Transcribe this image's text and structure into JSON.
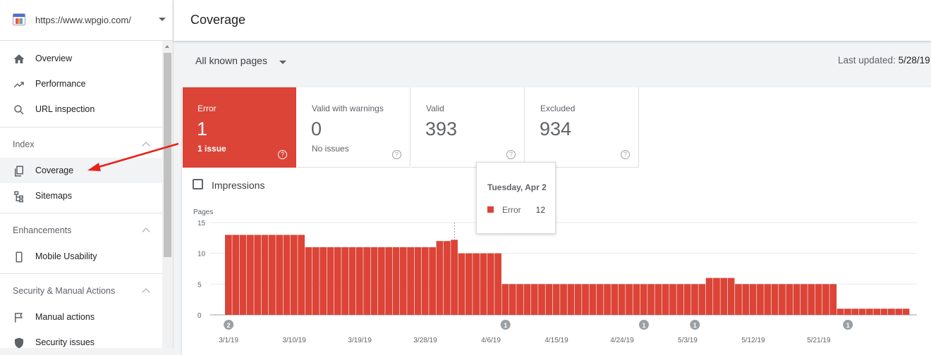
{
  "property": {
    "url": "https://www.wpgio.com/"
  },
  "sidebar": {
    "items_top": [
      {
        "label": "Overview",
        "icon": "home-icon"
      },
      {
        "label": "Performance",
        "icon": "trending-up-icon"
      },
      {
        "label": "URL inspection",
        "icon": "search-icon"
      }
    ],
    "index": {
      "title": "Index",
      "items": [
        {
          "label": "Coverage",
          "icon": "copy-pages-icon"
        },
        {
          "label": "Sitemaps",
          "icon": "sitemap-icon"
        }
      ]
    },
    "enhancements": {
      "title": "Enhancements",
      "items": [
        {
          "label": "Mobile Usability",
          "icon": "phone-icon"
        }
      ]
    },
    "security": {
      "title": "Security & Manual Actions",
      "items": [
        {
          "label": "Manual actions",
          "icon": "flag-icon"
        },
        {
          "label": "Security issues",
          "icon": "shield-icon"
        }
      ]
    }
  },
  "header": {
    "title": "Coverage"
  },
  "toolbar": {
    "pages_filter": "All known pages",
    "last_updated_label": "Last updated:",
    "last_updated_value": "5/28/19"
  },
  "tiles": [
    {
      "label": "Error",
      "value": "1",
      "sub": "1 issue"
    },
    {
      "label": "Valid with warnings",
      "value": "0",
      "sub": "No issues"
    },
    {
      "label": "Valid",
      "value": "393",
      "sub": ""
    },
    {
      "label": "Excluded",
      "value": "934",
      "sub": ""
    }
  ],
  "impressions_label": "Impressions",
  "tooltip": {
    "date": "Tuesday, Apr 2",
    "series": "Error",
    "value": "12"
  },
  "colors": {
    "error": "#db4437",
    "accent_arrow": "#e8211a"
  },
  "chart_data": {
    "type": "bar",
    "ylabel": "Pages",
    "ylim": [
      0,
      15
    ],
    "yticks": [
      0,
      5,
      10,
      15
    ],
    "x_start": "3/1/19",
    "xtick_labels": [
      "3/1/19",
      "3/10/19",
      "3/19/19",
      "3/28/19",
      "4/6/19",
      "4/15/19",
      "4/24/19",
      "5/3/19",
      "5/12/19",
      "5/21/19"
    ],
    "series": [
      {
        "name": "Error",
        "values": [
          13,
          13,
          13,
          13,
          13,
          13,
          13,
          13,
          13,
          13,
          13,
          11,
          11,
          11,
          11,
          11,
          11,
          11,
          11,
          11,
          11,
          11,
          11,
          11,
          11,
          11,
          11,
          11,
          11,
          12,
          12,
          12.2,
          10,
          10,
          10,
          10,
          10,
          10,
          5,
          5,
          5,
          5,
          5,
          5,
          5,
          5,
          5,
          5,
          5,
          5,
          5,
          5,
          5,
          5,
          5,
          5,
          5,
          5,
          5,
          5,
          5,
          5,
          5,
          5,
          5,
          5,
          6,
          6,
          6,
          6,
          5,
          5,
          5,
          5,
          5,
          5,
          5,
          5,
          5,
          5,
          5,
          5,
          5,
          5,
          1,
          1,
          1,
          1,
          1,
          1,
          1,
          1,
          1,
          1
        ]
      }
    ],
    "annotations": [
      {
        "index": 0,
        "label": "2"
      },
      {
        "index": 38,
        "label": "1"
      },
      {
        "index": 57,
        "label": "1"
      },
      {
        "index": 64,
        "label": "1"
      },
      {
        "index": 85,
        "label": "1"
      }
    ],
    "highlight_index": 31
  }
}
